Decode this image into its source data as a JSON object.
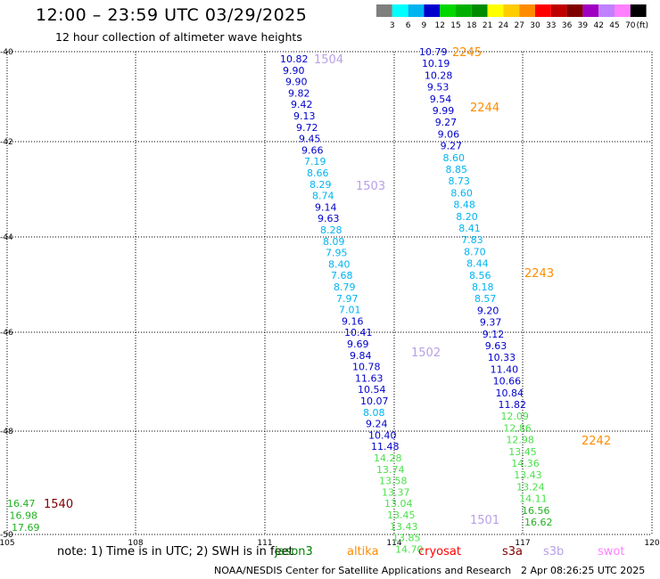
{
  "title": "12:00 – 23:59 UTC 03/29/2025",
  "subtitle": "12 hour collection of altimeter wave heights",
  "color_scale": {
    "unit": "(ft)",
    "bins": [
      {
        "label": "3",
        "color": "#7f7f7f"
      },
      {
        "label": "6",
        "color": "#00ffff"
      },
      {
        "label": "9",
        "color": "#00b4f0"
      },
      {
        "label": "12",
        "color": "#0000cd"
      },
      {
        "label": "15",
        "color": "#00d800"
      },
      {
        "label": "18",
        "color": "#00b000"
      },
      {
        "label": "21",
        "color": "#008c00"
      },
      {
        "label": "24",
        "color": "#ffff00"
      },
      {
        "label": "27",
        "color": "#ffcc00"
      },
      {
        "label": "30",
        "color": "#ff8c00"
      },
      {
        "label": "33",
        "color": "#ff0000"
      },
      {
        "label": "36",
        "color": "#c00000"
      },
      {
        "label": "39",
        "color": "#800000"
      },
      {
        "label": "42",
        "color": "#a000c0"
      },
      {
        "label": "45",
        "color": "#c080ff"
      },
      {
        "label": "70",
        "color": "#ff80ff"
      },
      {
        "label": "",
        "color": "#000000"
      }
    ]
  },
  "lat_labels": [
    "-40",
    "-42",
    "-44",
    "-46",
    "-48",
    "-50"
  ],
  "lon_labels": [
    "105",
    "108",
    "111",
    "114",
    "117",
    "120"
  ],
  "value_colors": {
    "blue": "#0000cd",
    "cyan": "#00b4f0",
    "green": "#4ce04c",
    "dgreen": "#20b020"
  },
  "pass_time_colors": {
    "s3b": "#b9a0e6",
    "altika": "#ff8c00",
    "s3a": "#800000"
  },
  "tracks": [
    {
      "values": [
        {
          "t": "10.82",
          "c": "blue"
        },
        {
          "t": "9.90",
          "c": "blue"
        },
        {
          "t": "9.90",
          "c": "blue"
        },
        {
          "t": "9.82",
          "c": "blue"
        },
        {
          "t": "9.42",
          "c": "blue"
        },
        {
          "t": "9.13",
          "c": "blue"
        },
        {
          "t": "9.72",
          "c": "blue"
        },
        {
          "t": "9.45",
          "c": "blue"
        },
        {
          "t": "9.66",
          "c": "blue"
        },
        {
          "t": "7.19",
          "c": "cyan"
        },
        {
          "t": "8.66",
          "c": "cyan"
        },
        {
          "t": "8.29",
          "c": "cyan"
        },
        {
          "t": "8.74",
          "c": "cyan"
        },
        {
          "t": "9.14",
          "c": "blue"
        },
        {
          "t": "9.63",
          "c": "blue"
        },
        {
          "t": "8.28",
          "c": "cyan"
        },
        {
          "t": "8.09",
          "c": "cyan"
        },
        {
          "t": "7.95",
          "c": "cyan"
        },
        {
          "t": "8.40",
          "c": "cyan"
        },
        {
          "t": "7.68",
          "c": "cyan"
        },
        {
          "t": "8.79",
          "c": "cyan"
        },
        {
          "t": "7.97",
          "c": "cyan"
        },
        {
          "t": "7.01",
          "c": "cyan"
        },
        {
          "t": "9.16",
          "c": "blue"
        },
        {
          "t": "10.41",
          "c": "blue"
        },
        {
          "t": "9.69",
          "c": "blue"
        },
        {
          "t": "9.84",
          "c": "blue"
        },
        {
          "t": "10.78",
          "c": "blue"
        },
        {
          "t": "11.63",
          "c": "blue"
        },
        {
          "t": "10.54",
          "c": "blue"
        },
        {
          "t": "10.07",
          "c": "blue"
        },
        {
          "t": "8.08",
          "c": "cyan"
        },
        {
          "t": "9.24",
          "c": "blue"
        },
        {
          "t": "10.40",
          "c": "blue"
        },
        {
          "t": "11.48",
          "c": "blue"
        },
        {
          "t": "14.28",
          "c": "green"
        },
        {
          "t": "13.74",
          "c": "green"
        },
        {
          "t": "13.58",
          "c": "green"
        },
        {
          "t": "13.37",
          "c": "green"
        },
        {
          "t": "13.04",
          "c": "green"
        },
        {
          "t": "13.45",
          "c": "green"
        },
        {
          "t": "13.43",
          "c": "green"
        },
        {
          "t": "13.85",
          "c": "green"
        },
        {
          "t": "14.70",
          "c": "green"
        }
      ]
    },
    {
      "values": [
        {
          "t": "10.79",
          "c": "blue"
        },
        {
          "t": "10.19",
          "c": "blue"
        },
        {
          "t": "10.28",
          "c": "blue"
        },
        {
          "t": "9.53",
          "c": "blue"
        },
        {
          "t": "9.54",
          "c": "blue"
        },
        {
          "t": "9.99",
          "c": "blue"
        },
        {
          "t": "9.27",
          "c": "blue"
        },
        {
          "t": "9.06",
          "c": "blue"
        },
        {
          "t": "9.27",
          "c": "blue"
        },
        {
          "t": "8.60",
          "c": "cyan"
        },
        {
          "t": "8.85",
          "c": "cyan"
        },
        {
          "t": "8.73",
          "c": "cyan"
        },
        {
          "t": "8.60",
          "c": "cyan"
        },
        {
          "t": "8.48",
          "c": "cyan"
        },
        {
          "t": "8.20",
          "c": "cyan"
        },
        {
          "t": "8.41",
          "c": "cyan"
        },
        {
          "t": "7.83",
          "c": "cyan"
        },
        {
          "t": "8.70",
          "c": "cyan"
        },
        {
          "t": "8.44",
          "c": "cyan"
        },
        {
          "t": "8.56",
          "c": "cyan"
        },
        {
          "t": "8.18",
          "c": "cyan"
        },
        {
          "t": "8.57",
          "c": "cyan"
        },
        {
          "t": "9.20",
          "c": "blue"
        },
        {
          "t": "9.37",
          "c": "blue"
        },
        {
          "t": "9.12",
          "c": "blue"
        },
        {
          "t": "9.63",
          "c": "blue"
        },
        {
          "t": "10.33",
          "c": "blue"
        },
        {
          "t": "11.40",
          "c": "blue"
        },
        {
          "t": "10.66",
          "c": "blue"
        },
        {
          "t": "10.84",
          "c": "blue"
        },
        {
          "t": "11.82",
          "c": "blue"
        },
        {
          "t": "12.09",
          "c": "green"
        },
        {
          "t": "12.86",
          "c": "green"
        },
        {
          "t": "12.98",
          "c": "green"
        },
        {
          "t": "13.45",
          "c": "green"
        },
        {
          "t": "14.36",
          "c": "green"
        },
        {
          "t": "13.43",
          "c": "green"
        },
        {
          "t": "13.24",
          "c": "green"
        },
        {
          "t": "14.11",
          "c": "green"
        },
        {
          "t": "16.56",
          "c": "dgreen"
        },
        {
          "t": "16.62",
          "c": "dgreen"
        }
      ]
    },
    {
      "values": [
        {
          "t": "16.47",
          "c": "dgreen"
        },
        {
          "t": "16.98",
          "c": "dgreen"
        },
        {
          "t": "17.69",
          "c": "dgreen"
        }
      ]
    }
  ],
  "pass_times": [
    {
      "t": "1504",
      "c": "s3b"
    },
    {
      "t": "1503",
      "c": "s3b"
    },
    {
      "t": "1502",
      "c": "s3b"
    },
    {
      "t": "1501",
      "c": "s3b"
    },
    {
      "t": "2245",
      "c": "altika"
    },
    {
      "t": "2244",
      "c": "altika"
    },
    {
      "t": "2243",
      "c": "altika"
    },
    {
      "t": "2242",
      "c": "altika"
    },
    {
      "t": "1540",
      "c": "s3a"
    }
  ],
  "note": "note:  1) Time is in UTC; 2) SWH is in feet",
  "satellites": [
    {
      "name": "jason3",
      "color": "#008000"
    },
    {
      "name": "altika",
      "color": "#ff8c00"
    },
    {
      "name": "cryosat",
      "color": "#ff0000"
    },
    {
      "name": "s3a",
      "color": "#800000"
    },
    {
      "name": "s3b",
      "color": "#b9a0e6"
    },
    {
      "name": "swot",
      "color": "#ff80ff"
    }
  ],
  "footer": {
    "credit": "NOAA/NESDIS Center for Satellite Applications and Research",
    "date": "2 Apr 08:26:25 UTC 2025"
  }
}
